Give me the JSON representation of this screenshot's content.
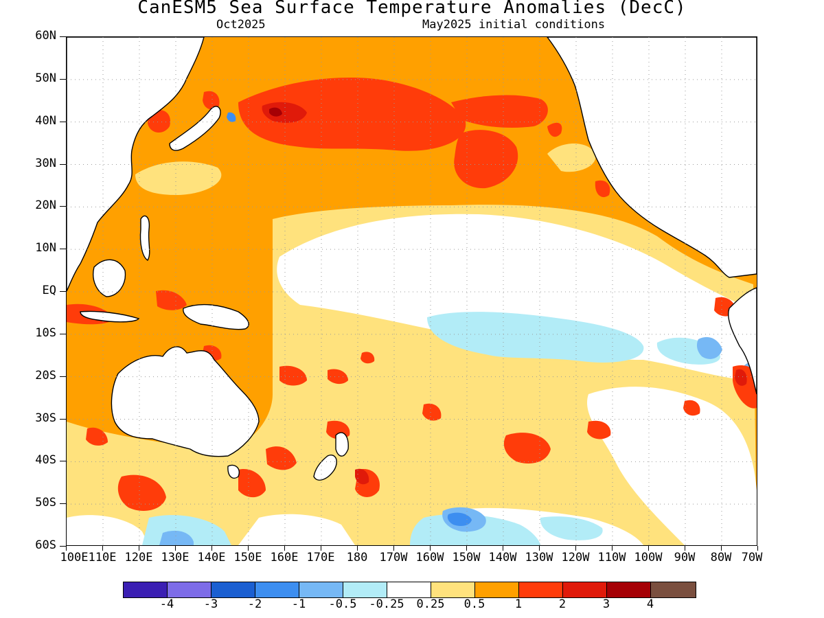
{
  "header": {
    "title": "CanESM5 Sea Surface Temperature Anomalies (DecC)",
    "subtitle_left": "Oct2025",
    "subtitle_right": "May2025 initial conditions"
  },
  "axes": {
    "lat_labels": [
      "60N",
      "50N",
      "40N",
      "30N",
      "20N",
      "10N",
      "EQ",
      "10S",
      "20S",
      "30S",
      "40S",
      "50S",
      "60S"
    ],
    "lon_labels": [
      "100E",
      "110E",
      "120E",
      "130E",
      "140E",
      "150E",
      "160E",
      "170E",
      "180",
      "170W",
      "160W",
      "150W",
      "140W",
      "130W",
      "120W",
      "110W",
      "100W",
      "90W",
      "80W",
      "70W"
    ],
    "lat_range": [
      -60,
      60
    ],
    "lon_range": [
      100,
      290
    ],
    "grid": "dotted"
  },
  "colorbar": {
    "labels": [
      "-4",
      "-3",
      "-2",
      "-1",
      "-0.5",
      "-0.25",
      "0.25",
      "0.5",
      "1",
      "2",
      "3",
      "4"
    ],
    "colors": [
      "#3b1fb3",
      "#7d6ce8",
      "#1b5fd1",
      "#3d8ef0",
      "#76b8f5",
      "#b2ecf7",
      "#ffffff",
      "#ffe27d",
      "#ffa000",
      "#ff3c0a",
      "#e01a0a",
      "#a50005",
      "#7a4f3f"
    ]
  },
  "map": {
    "region": "Pacific Ocean and surrounding basins",
    "land_color": "#ffffff",
    "coast_color": "#000000"
  }
}
